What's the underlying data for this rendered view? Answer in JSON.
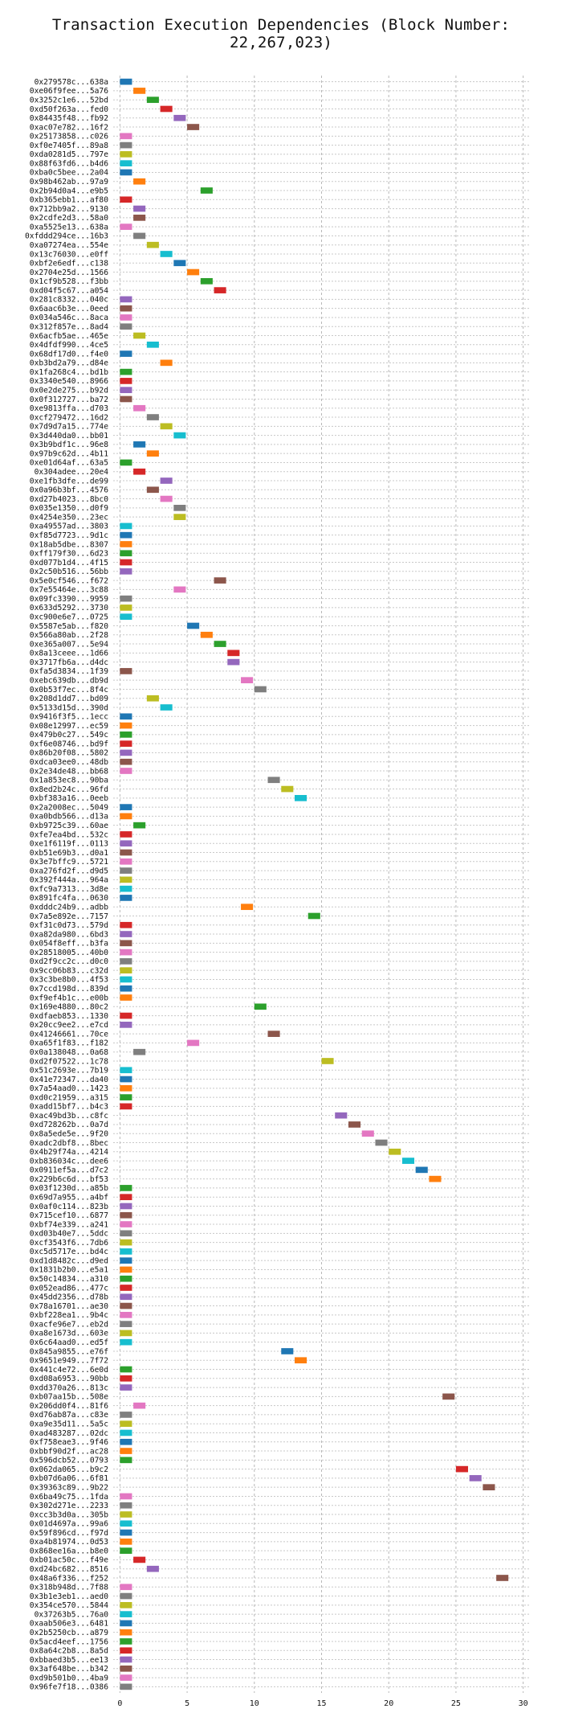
{
  "title": "Transaction Execution Dependencies (Block Number: 22,267,023)",
  "chart_data": {
    "type": "bar",
    "orientation": "horizontal",
    "title": "Transaction Execution Dependencies (Block Number: 22,267,023)",
    "xlabel": "",
    "ylabel": "",
    "xlim": [
      -0.5,
      30.5
    ],
    "xticks": [
      0,
      5,
      10,
      15,
      20,
      25,
      30
    ],
    "grid": true,
    "bar_width": 0.9,
    "palette": [
      "#1f77b4",
      "#ff7f0e",
      "#2ca02c",
      "#d62728",
      "#9467bd",
      "#8c564b",
      "#e377c2",
      "#7f7f7f",
      "#bcbd22",
      "#17becf"
    ],
    "rows": [
      {
        "label": "0x279578c...638a",
        "start": 0,
        "color": 0
      },
      {
        "label": "0xe06f9fee...5a76",
        "start": 1,
        "color": 1
      },
      {
        "label": "0x3252c1e6...52bd",
        "start": 2,
        "color": 2
      },
      {
        "label": "0xd50f263a...fed0",
        "start": 3,
        "color": 3
      },
      {
        "label": "0x84435f48...fb92",
        "start": 4,
        "color": 4
      },
      {
        "label": "0xac07e782...16f2",
        "start": 5,
        "color": 5
      },
      {
        "label": "0x25173858...c026",
        "start": 0,
        "color": 6
      },
      {
        "label": "0xf0e7405f...89a8",
        "start": 0,
        "color": 7
      },
      {
        "label": "0xda0281d5...797e",
        "start": 0,
        "color": 8
      },
      {
        "label": "0x88f63fd6...b4d6",
        "start": 0,
        "color": 9
      },
      {
        "label": "0xba0c5bee...2a04",
        "start": 0,
        "color": 0
      },
      {
        "label": "0x98b462ab...97a9",
        "start": 1,
        "color": 1
      },
      {
        "label": "0x2b94d0a4...e9b5",
        "start": 6,
        "color": 2
      },
      {
        "label": "0xb365ebb1...af80",
        "start": 0,
        "color": 3
      },
      {
        "label": "0x712bb9a2...9130",
        "start": 1,
        "color": 4
      },
      {
        "label": "0x2cdfe2d3...58a0",
        "start": 1,
        "color": 5
      },
      {
        "label": "0xa5525e13...638a",
        "start": 0,
        "color": 6
      },
      {
        "label": "0xfddd294ce...16b3",
        "start": 1,
        "color": 7
      },
      {
        "label": "0xa07274ea...554e",
        "start": 2,
        "color": 8
      },
      {
        "label": "0x13c76030...e0ff",
        "start": 3,
        "color": 9
      },
      {
        "label": "0xbf2e6edf...c138",
        "start": 4,
        "color": 0
      },
      {
        "label": "0x2704e25d...1566",
        "start": 5,
        "color": 1
      },
      {
        "label": "0x1cf9b528...f3bb",
        "start": 6,
        "color": 2
      },
      {
        "label": "0xd04f5c67...a054",
        "start": 7,
        "color": 3
      },
      {
        "label": "0x281c8332...040c",
        "start": 0,
        "color": 4
      },
      {
        "label": "0x6aac6b3e...0eed",
        "start": 0,
        "color": 5
      },
      {
        "label": "0x034a546c...8aca",
        "start": 0,
        "color": 6
      },
      {
        "label": "0x312f857e...8ad4",
        "start": 0,
        "color": 7
      },
      {
        "label": "0x6acfb5ae...465e",
        "start": 1,
        "color": 8
      },
      {
        "label": "0x4dfdf990...4ce5",
        "start": 2,
        "color": 9
      },
      {
        "label": "0x68df17d0...f4e0",
        "start": 0,
        "color": 0
      },
      {
        "label": "0xb3bd2a79...d84e",
        "start": 3,
        "color": 1
      },
      {
        "label": "0x1fa268c4...bd1b",
        "start": 0,
        "color": 2
      },
      {
        "label": "0x3340e540...8966",
        "start": 0,
        "color": 3
      },
      {
        "label": "0x0e2de275...b92d",
        "start": 0,
        "color": 4
      },
      {
        "label": "0x0f312727...ba72",
        "start": 0,
        "color": 5
      },
      {
        "label": "0xe9813ffa...d703",
        "start": 1,
        "color": 6
      },
      {
        "label": "0xcf279472...16d2",
        "start": 2,
        "color": 7
      },
      {
        "label": "0x7d9d7a15...774e",
        "start": 3,
        "color": 8
      },
      {
        "label": "0x3d440da0...bb01",
        "start": 4,
        "color": 9
      },
      {
        "label": "0x3b9bdf1c...96e8",
        "start": 1,
        "color": 0
      },
      {
        "label": "0x97b9c62d...4b11",
        "start": 2,
        "color": 1
      },
      {
        "label": "0xe01d64af...63a5",
        "start": 0,
        "color": 2
      },
      {
        "label": "0x304adee...20e4",
        "start": 1,
        "color": 3
      },
      {
        "label": "0xe1fb3dfe...de99",
        "start": 3,
        "color": 4
      },
      {
        "label": "0x0a96b3bf...4576",
        "start": 2,
        "color": 5
      },
      {
        "label": "0xd27b4023...8bc0",
        "start": 3,
        "color": 6
      },
      {
        "label": "0x035e1350...d0f9",
        "start": 4,
        "color": 7
      },
      {
        "label": "0x4254e350...23ec",
        "start": 4,
        "color": 8
      },
      {
        "label": "0xa49557ad...3803",
        "start": 0,
        "color": 9
      },
      {
        "label": "0xf85d7723...9d1c",
        "start": 0,
        "color": 0
      },
      {
        "label": "0x18ab5dbe...8307",
        "start": 0,
        "color": 1
      },
      {
        "label": "0xff179f30...6d23",
        "start": 0,
        "color": 2
      },
      {
        "label": "0xd077b1d4...4f15",
        "start": 0,
        "color": 3
      },
      {
        "label": "0x2c50b516...56bb",
        "start": 0,
        "color": 4
      },
      {
        "label": "0x5e0cf546...f672",
        "start": 7,
        "color": 5
      },
      {
        "label": "0x7e55464e...3c88",
        "start": 4,
        "color": 6
      },
      {
        "label": "0x09fc3390...9959",
        "start": 0,
        "color": 7
      },
      {
        "label": "0x633d5292...3730",
        "start": 0,
        "color": 8
      },
      {
        "label": "0xc900e6e7...0725",
        "start": 0,
        "color": 9
      },
      {
        "label": "0x5587e5ab...f820",
        "start": 5,
        "color": 0
      },
      {
        "label": "0x566a80ab...2f28",
        "start": 6,
        "color": 1
      },
      {
        "label": "0xe365a007...5e94",
        "start": 7,
        "color": 2
      },
      {
        "label": "0x8a13ceee...1d66",
        "start": 8,
        "color": 3
      },
      {
        "label": "0x3717fb6a...d4dc",
        "start": 8,
        "color": 4
      },
      {
        "label": "0xfa5d3834...1f39",
        "start": 0,
        "color": 5
      },
      {
        "label": "0xebc639db...db9d",
        "start": 9,
        "color": 6
      },
      {
        "label": "0x0b53f7ec...8f4c",
        "start": 10,
        "color": 7
      },
      {
        "label": "0x208d1dd7...bd09",
        "start": 2,
        "color": 8
      },
      {
        "label": "0x5133d15d...390d",
        "start": 3,
        "color": 9
      },
      {
        "label": "0x9416f3f5...1ecc",
        "start": 0,
        "color": 0
      },
      {
        "label": "0x08e12997...ec59",
        "start": 0,
        "color": 1
      },
      {
        "label": "0x479b0c27...549c",
        "start": 0,
        "color": 2
      },
      {
        "label": "0xf6e08746...bd9f",
        "start": 0,
        "color": 3
      },
      {
        "label": "0x86b20f08...5802",
        "start": 0,
        "color": 4
      },
      {
        "label": "0xdca03ee0...48db",
        "start": 0,
        "color": 5
      },
      {
        "label": "0x2e34de48...bb68",
        "start": 0,
        "color": 6
      },
      {
        "label": "0x1a853ec8...90ba",
        "start": 11,
        "color": 7
      },
      {
        "label": "0x8ed2b24c...96fd",
        "start": 12,
        "color": 8
      },
      {
        "label": "0xbf383a16...0eeb",
        "start": 13,
        "color": 9
      },
      {
        "label": "0x2a2008ec...5049",
        "start": 0,
        "color": 0
      },
      {
        "label": "0xa0bdb566...d13a",
        "start": 0,
        "color": 1
      },
      {
        "label": "0xb9725c39...60ae",
        "start": 1,
        "color": 2
      },
      {
        "label": "0xfe7ea4bd...532c",
        "start": 0,
        "color": 3
      },
      {
        "label": "0xe1f6119f...0113",
        "start": 0,
        "color": 4
      },
      {
        "label": "0xb51e69b3...d0a1",
        "start": 0,
        "color": 5
      },
      {
        "label": "0x3e7bffc9...5721",
        "start": 0,
        "color": 6
      },
      {
        "label": "0xa276fd2f...d9d5",
        "start": 0,
        "color": 7
      },
      {
        "label": "0x392f444a...964a",
        "start": 0,
        "color": 8
      },
      {
        "label": "0xfc9a7313...3d8e",
        "start": 0,
        "color": 9
      },
      {
        "label": "0x891fc4fa...0630",
        "start": 0,
        "color": 0
      },
      {
        "label": "0xdddc24b9...adbb",
        "start": 9,
        "color": 1
      },
      {
        "label": "0x7a5e892e...7157",
        "start": 14,
        "color": 2
      },
      {
        "label": "0xf31c0d73...579d",
        "start": 0,
        "color": 3
      },
      {
        "label": "0xa82da980...6bd3",
        "start": 0,
        "color": 4
      },
      {
        "label": "0x054f8eff...b3fa",
        "start": 0,
        "color": 5
      },
      {
        "label": "0x28518005...40b0",
        "start": 0,
        "color": 6
      },
      {
        "label": "0xd2f9cc2c...d0c0",
        "start": 0,
        "color": 7
      },
      {
        "label": "0x9cc06b83...c32d",
        "start": 0,
        "color": 8
      },
      {
        "label": "0x3c3be8b0...4f53",
        "start": 0,
        "color": 9
      },
      {
        "label": "0x7ccd198d...839d",
        "start": 0,
        "color": 0
      },
      {
        "label": "0xf9ef4b1c...e00b",
        "start": 0,
        "color": 1
      },
      {
        "label": "0x169e4880...80c2",
        "start": 10,
        "color": 2
      },
      {
        "label": "0xdfaeb853...1330",
        "start": 0,
        "color": 3
      },
      {
        "label": "0x20cc9ee2...e7cd",
        "start": 0,
        "color": 4
      },
      {
        "label": "0x41246661...70ce",
        "start": 11,
        "color": 5
      },
      {
        "label": "0xa65f1f83...f182",
        "start": 5,
        "color": 6
      },
      {
        "label": "0x0a138048...0a68",
        "start": 1,
        "color": 7
      },
      {
        "label": "0xd2f07522...1c78",
        "start": 15,
        "color": 8
      },
      {
        "label": "0x51c2693e...7b19",
        "start": 0,
        "color": 9
      },
      {
        "label": "0x41e72347...da40",
        "start": 0,
        "color": 0
      },
      {
        "label": "0x7a54aad0...1423",
        "start": 0,
        "color": 1
      },
      {
        "label": "0xd0c21959...a315",
        "start": 0,
        "color": 2
      },
      {
        "label": "0xadd15bf7...b4c3",
        "start": 0,
        "color": 3
      },
      {
        "label": "0xac49bd3b...c8fc",
        "start": 16,
        "color": 4
      },
      {
        "label": "0xd728262b...0a7d",
        "start": 17,
        "color": 5
      },
      {
        "label": "0x8a5ede5e...9f20",
        "start": 18,
        "color": 6
      },
      {
        "label": "0xadc2dbf8...8bec",
        "start": 19,
        "color": 7
      },
      {
        "label": "0x4b29f74a...4214",
        "start": 20,
        "color": 8
      },
      {
        "label": "0xb836034c...dee6",
        "start": 21,
        "color": 9
      },
      {
        "label": "0x0911ef5a...d7c2",
        "start": 22,
        "color": 0
      },
      {
        "label": "0x229b6c6d...bf53",
        "start": 23,
        "color": 1
      },
      {
        "label": "0x03f1230d...a85b",
        "start": 0,
        "color": 2
      },
      {
        "label": "0x69d7a955...a4bf",
        "start": 0,
        "color": 3
      },
      {
        "label": "0x0af0c114...823b",
        "start": 0,
        "color": 4
      },
      {
        "label": "0x715cef10...6877",
        "start": 0,
        "color": 5
      },
      {
        "label": "0xbf74e339...a241",
        "start": 0,
        "color": 6
      },
      {
        "label": "0xd03b40e7...5ddc",
        "start": 0,
        "color": 7
      },
      {
        "label": "0xcf3543f6...7db6",
        "start": 0,
        "color": 8
      },
      {
        "label": "0xc5d5717e...bd4c",
        "start": 0,
        "color": 9
      },
      {
        "label": "0xd1d8482c...d9ed",
        "start": 0,
        "color": 0
      },
      {
        "label": "0x1831b2b0...e5a1",
        "start": 0,
        "color": 1
      },
      {
        "label": "0x50c14834...a310",
        "start": 0,
        "color": 2
      },
      {
        "label": "0x052ead86...477c",
        "start": 0,
        "color": 3
      },
      {
        "label": "0x45dd2356...d78b",
        "start": 0,
        "color": 4
      },
      {
        "label": "0x78a16701...ae30",
        "start": 0,
        "color": 5
      },
      {
        "label": "0xbf228ea1...9b4c",
        "start": 0,
        "color": 6
      },
      {
        "label": "0xacfe96e7...eb2d",
        "start": 0,
        "color": 7
      },
      {
        "label": "0xa8e1673d...603e",
        "start": 0,
        "color": 8
      },
      {
        "label": "0x6c64aad0...ed5f",
        "start": 0,
        "color": 9
      },
      {
        "label": "0x845a9855...e76f",
        "start": 12,
        "color": 0
      },
      {
        "label": "0x9651e949...7f72",
        "start": 13,
        "color": 1
      },
      {
        "label": "0x441c4e72...6e0d",
        "start": 0,
        "color": 2
      },
      {
        "label": "0xd08a6953...90bb",
        "start": 0,
        "color": 3
      },
      {
        "label": "0xdd370a26...813c",
        "start": 0,
        "color": 4
      },
      {
        "label": "0xb07aa15b...508e",
        "start": 24,
        "color": 5
      },
      {
        "label": "0x206dd0f4...81f6",
        "start": 1,
        "color": 6
      },
      {
        "label": "0xd76ab87a...c83e",
        "start": 0,
        "color": 7
      },
      {
        "label": "0xa9e35d11...5a5c",
        "start": 0,
        "color": 8
      },
      {
        "label": "0xad483287...02dc",
        "start": 0,
        "color": 9
      },
      {
        "label": "0xf758eae3...9f46",
        "start": 0,
        "color": 0
      },
      {
        "label": "0xbbf90d2f...ac28",
        "start": 0,
        "color": 1
      },
      {
        "label": "0x596dcb52...0793",
        "start": 0,
        "color": 2
      },
      {
        "label": "0x062da065...b9c2",
        "start": 25,
        "color": 3
      },
      {
        "label": "0xb07d6a06...6f81",
        "start": 26,
        "color": 4
      },
      {
        "label": "0x39363c89...9b22",
        "start": 27,
        "color": 5
      },
      {
        "label": "0x6ba49c75...1fda",
        "start": 0,
        "color": 6
      },
      {
        "label": "0x302d271e...2233",
        "start": 0,
        "color": 7
      },
      {
        "label": "0xcc3b3d0a...305b",
        "start": 0,
        "color": 8
      },
      {
        "label": "0x01d4697a...99a6",
        "start": 0,
        "color": 9
      },
      {
        "label": "0x59f896cd...f97d",
        "start": 0,
        "color": 0
      },
      {
        "label": "0xa4b81974...0d53",
        "start": 0,
        "color": 1
      },
      {
        "label": "0x868ee16a...b8e0",
        "start": 0,
        "color": 2
      },
      {
        "label": "0xb01ac50c...f49e",
        "start": 1,
        "color": 3
      },
      {
        "label": "0xd24bc682...8516",
        "start": 2,
        "color": 4
      },
      {
        "label": "0x48a6f336...f252",
        "start": 28,
        "color": 5
      },
      {
        "label": "0x318b948d...7f88",
        "start": 0,
        "color": 6
      },
      {
        "label": "0x3b1e3eb1...aed0",
        "start": 0,
        "color": 7
      },
      {
        "label": "0x354ce570...5844",
        "start": 0,
        "color": 8
      },
      {
        "label": "0x37263b5...76a0",
        "start": 0,
        "color": 9
      },
      {
        "label": "0xaab506e3...6481",
        "start": 0,
        "color": 0
      },
      {
        "label": "0x2b5250cb...a879",
        "start": 0,
        "color": 1
      },
      {
        "label": "0x5acd4eef...1756",
        "start": 0,
        "color": 2
      },
      {
        "label": "0x8a64c2b8...8a5d",
        "start": 0,
        "color": 3
      },
      {
        "label": "0xbbaed3b5...ee13",
        "start": 0,
        "color": 4
      },
      {
        "label": "0x3af648be...b342",
        "start": 0,
        "color": 5
      },
      {
        "label": "0xd9b501b0...4ba9",
        "start": 0,
        "color": 6
      },
      {
        "label": "0x96fe7f18...0386",
        "start": 0,
        "color": 7
      }
    ]
  }
}
